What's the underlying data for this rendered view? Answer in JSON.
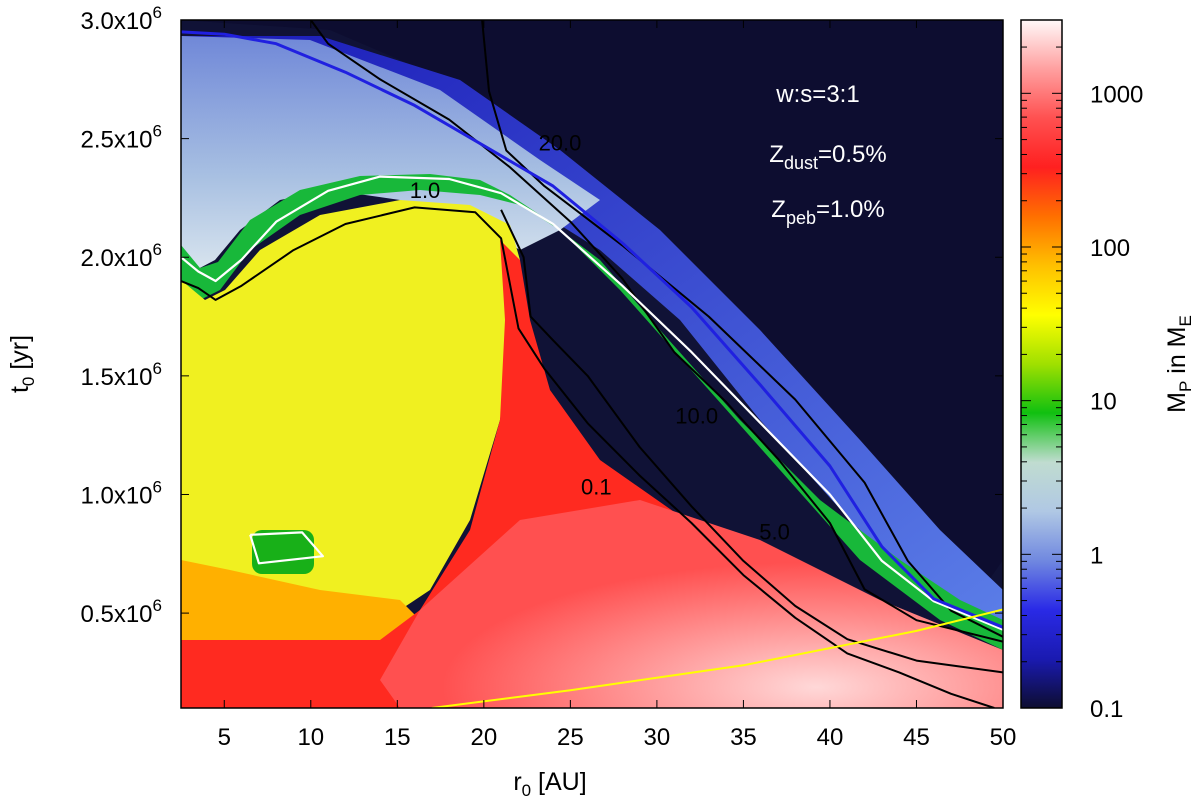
{
  "chart_data": {
    "type": "heatmap",
    "title": "",
    "xlabel": {
      "main": "r",
      "sub": "0",
      "unit": " [AU]"
    },
    "ylabel": {
      "main": "t",
      "sub": "0",
      "unit": " [yr]"
    },
    "xlim": [
      2.5,
      50
    ],
    "ylim": [
      100000,
      3000000
    ],
    "x_ticks": [
      {
        "value": 5,
        "label": "5"
      },
      {
        "value": 10,
        "label": "10"
      },
      {
        "value": 15,
        "label": "15"
      },
      {
        "value": 20,
        "label": "20"
      },
      {
        "value": 25,
        "label": "25"
      },
      {
        "value": 30,
        "label": "30"
      },
      {
        "value": 35,
        "label": "35"
      },
      {
        "value": 40,
        "label": "40"
      },
      {
        "value": 45,
        "label": "45"
      },
      {
        "value": 50,
        "label": "50"
      }
    ],
    "y_ticks": [
      {
        "value": 500000,
        "base": "0.5x10",
        "exp": "6"
      },
      {
        "value": 1000000,
        "base": "1.0x10",
        "exp": "6"
      },
      {
        "value": 1500000,
        "base": "1.5x10",
        "exp": "6"
      },
      {
        "value": 2000000,
        "base": "2.0x10",
        "exp": "6"
      },
      {
        "value": 2500000,
        "base": "2.5x10",
        "exp": "6"
      },
      {
        "value": 3000000,
        "base": "3.0x10",
        "exp": "6"
      }
    ],
    "colorbar": {
      "label": {
        "main": "M",
        "sub1": "P",
        "mid": " in M",
        "sub2": "E"
      },
      "scale": "log",
      "range": [
        0.1,
        3000
      ],
      "ticks": [
        {
          "value": 0.1,
          "label": "0.1"
        },
        {
          "value": 1,
          "label": "1"
        },
        {
          "value": 10,
          "label": "10"
        },
        {
          "value": 100,
          "label": "100"
        },
        {
          "value": 1000,
          "label": "1000"
        }
      ],
      "colors": [
        "#0d0d30",
        "#1a1ab0",
        "#2a2ae6",
        "#7088e0",
        "#b0c8e4",
        "#c0dcd0",
        "#10c010",
        "#a0e000",
        "#ffff00",
        "#ffc000",
        "#ff7000",
        "#ff2020",
        "#ff5050",
        "#ffa0a0",
        "#fff8f8"
      ]
    },
    "contours": [
      {
        "label": "20.0",
        "color": "#000000",
        "points": [
          [
            19.9,
            3000000
          ],
          [
            20.3,
            2700000
          ],
          [
            21.3,
            2450000
          ],
          [
            23.5,
            2300000
          ],
          [
            28,
            2050000
          ],
          [
            33,
            1750000
          ],
          [
            38,
            1400000
          ],
          [
            42,
            1050000
          ],
          [
            44.5,
            720000
          ],
          [
            47,
            510000
          ],
          [
            50,
            400000
          ]
        ]
      },
      {
        "label": "10.0",
        "color": "#000000",
        "points": [
          [
            10,
            3000000
          ],
          [
            11,
            2900000
          ],
          [
            14,
            2750000
          ],
          [
            18,
            2580000
          ],
          [
            21.5,
            2380000
          ],
          [
            25,
            2150000
          ],
          [
            28,
            1910000
          ],
          [
            31,
            1600000
          ],
          [
            34,
            1390000
          ],
          [
            37,
            1150000
          ],
          [
            40,
            880000
          ],
          [
            42,
            600000
          ],
          [
            45,
            470000
          ],
          [
            50,
            380000
          ]
        ]
      },
      {
        "label": "5.0",
        "color": "#000000",
        "points": [
          [
            21,
            2200000
          ],
          [
            22.3,
            2000000
          ],
          [
            22.7,
            1750000
          ],
          [
            24,
            1650000
          ],
          [
            26,
            1500000
          ],
          [
            29,
            1200000
          ],
          [
            32,
            950000
          ],
          [
            35,
            720000
          ],
          [
            38,
            530000
          ],
          [
            41,
            390000
          ],
          [
            45,
            300000
          ],
          [
            50,
            250000
          ]
        ]
      },
      {
        "label": "0.1",
        "color": "#000000",
        "points": [
          [
            2.5,
            1900000
          ],
          [
            3.5,
            1870000
          ],
          [
            4.5,
            1820000
          ],
          [
            6,
            1880000
          ],
          [
            9,
            2030000
          ],
          [
            12,
            2140000
          ],
          [
            16,
            2210000
          ],
          [
            19.5,
            2190000
          ],
          [
            21,
            2080000
          ],
          [
            22,
            1700000
          ],
          [
            23.5,
            1530000
          ],
          [
            26,
            1300000
          ],
          [
            29,
            1080000
          ],
          [
            32,
            880000
          ],
          [
            35,
            660000
          ],
          [
            38,
            480000
          ],
          [
            41,
            330000
          ],
          [
            44,
            250000
          ],
          [
            47,
            160000
          ],
          [
            49.5,
            100000
          ]
        ]
      },
      {
        "label": "1.0",
        "color": "#ffffff",
        "points": [
          [
            2.5,
            2000000
          ],
          [
            3.5,
            1940000
          ],
          [
            4.5,
            1900000
          ],
          [
            6,
            1990000
          ],
          [
            8,
            2150000
          ],
          [
            11,
            2280000
          ],
          [
            14,
            2340000
          ],
          [
            18,
            2330000
          ],
          [
            21,
            2270000
          ],
          [
            24,
            2140000
          ],
          [
            28,
            1880000
          ],
          [
            32,
            1600000
          ],
          [
            36,
            1300000
          ],
          [
            40,
            1000000
          ],
          [
            43,
            720000
          ],
          [
            46,
            550000
          ],
          [
            50,
            430000
          ]
        ]
      },
      {
        "label": "",
        "color": "#2020e0",
        "points": [
          [
            2.5,
            2950000
          ],
          [
            5,
            2940000
          ],
          [
            8,
            2900000
          ],
          [
            12,
            2780000
          ],
          [
            16,
            2640000
          ],
          [
            20,
            2470000
          ],
          [
            24,
            2300000
          ],
          [
            28,
            2060000
          ],
          [
            32,
            1790000
          ],
          [
            36,
            1460000
          ],
          [
            40,
            1120000
          ],
          [
            43,
            780000
          ],
          [
            46,
            560000
          ],
          [
            50,
            440000
          ]
        ]
      },
      {
        "label": "",
        "color": "#ffffff",
        "points": [
          [
            6.5,
            830000
          ],
          [
            9.5,
            840000
          ],
          [
            10.7,
            740000
          ],
          [
            7,
            710000
          ],
          [
            6.5,
            830000
          ]
        ]
      },
      {
        "label": "",
        "color": "#ffff00",
        "points": [
          [
            17,
            100000
          ],
          [
            25,
            175000
          ],
          [
            35,
            280000
          ],
          [
            45,
            425000
          ],
          [
            50,
            515000
          ]
        ]
      }
    ],
    "contour_labels": [
      {
        "text": "20.0",
        "x": 24.4,
        "y": 2450000
      },
      {
        "text": "10.0",
        "x": 32.3,
        "y": 1300000
      },
      {
        "text": "5.0",
        "x": 36.8,
        "y": 810000
      },
      {
        "text": "1.0",
        "x": 16.6,
        "y": 2250000
      },
      {
        "text": "0.1",
        "x": 26.5,
        "y": 1000000
      }
    ],
    "annotations": [
      {
        "text": "w:s=3:1"
      },
      {
        "main": "Z",
        "sub": "dust",
        "tail": "=0.5%"
      },
      {
        "main": "Z",
        "sub": "peb",
        "tail": "=1.0%"
      }
    ]
  }
}
